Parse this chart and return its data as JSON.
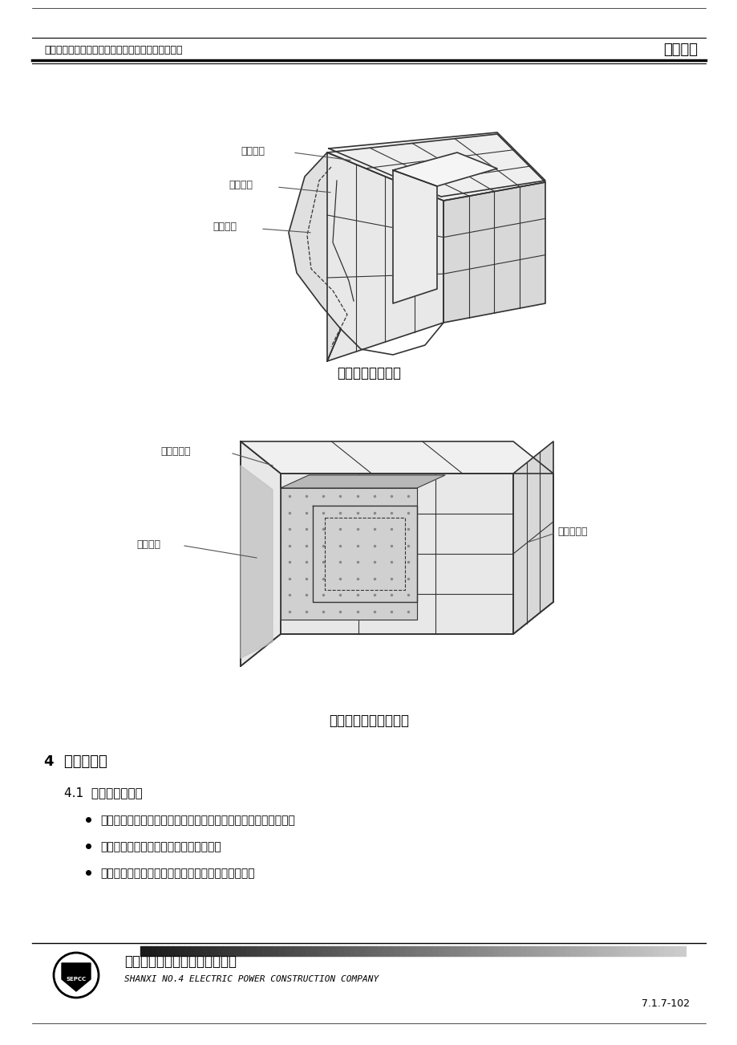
{
  "header_left": "北京三热天然气燃机联合循环发电工程施工１号标段",
  "header_right": "投标文件",
  "footer_company_cn": "山西省电力公司电力建设四公司",
  "footer_company_en": "SHANXI NO.4 ELECTRIC POWER CONSTRUCTION COMPANY",
  "footer_page": "7.1.7-102",
  "diagram1_title": "管道分层保温结构",
  "diagram1_labels": [
    "外层保温",
    "内层保温",
    "管道表面"
  ],
  "diagram2_title": "设备和箱体的保温结构",
  "diagram2_labels": [
    "内层绝热板",
    "设备壁板",
    "外层绝热板"
  ],
  "section_title": "4  外护板安装",
  "subsection_title": "4.1  外护板放样下料",
  "bullets": [
    "对保温的管道和设备进行实际测量，根据实际测量数据进行下料。",
    "下料必须考虑出横向、纵向的搭接余量。",
    "弯头、三通及管件、阀门等特殊部位，要下料准确。"
  ],
  "bg_color": "#ffffff",
  "line_color": "#000000",
  "text_color": "#000000",
  "gray_color": "#cccccc",
  "light_gray": "#e8e8e8"
}
